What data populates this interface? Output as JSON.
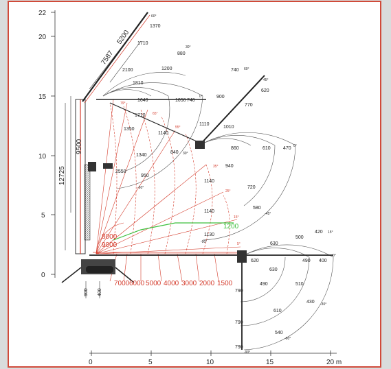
{
  "colors": {
    "frame": "#d04a3a",
    "boom": "#d43a2a",
    "line": "#333333",
    "green": "#3cbf3c",
    "background": "#d9dcdc"
  },
  "axes": {
    "x_ticks": [
      "0",
      "5",
      "10",
      "15",
      "20 m"
    ],
    "y_ticks": [
      "0",
      "5",
      "10",
      "15",
      "20",
      "22"
    ]
  },
  "dimensions": {
    "d7587": "7587",
    "d5200": "5200",
    "d9500": "9500",
    "d12725": "12725",
    "d900": "900",
    "d400": "400"
  },
  "red_loads_bottom": [
    "7000",
    "6000",
    "5000",
    "4000",
    "3000",
    "2000",
    "1500"
  ],
  "red_loads_left": [
    "8000",
    "9000"
  ],
  "green_load": "1200",
  "load_labels": {
    "top": [
      {
        "id": "l1370",
        "t": "1370"
      },
      {
        "id": "l1710a",
        "t": "1710"
      },
      {
        "id": "l880",
        "t": "880"
      },
      {
        "id": "l2100",
        "t": "2100"
      },
      {
        "id": "l1200",
        "t": "1200"
      },
      {
        "id": "l1810",
        "t": "1810"
      },
      {
        "id": "l1640",
        "t": "1640"
      },
      {
        "id": "l1050",
        "t": "1050"
      },
      {
        "id": "l740a",
        "t": "740"
      },
      {
        "id": "l1710b",
        "t": "1710"
      },
      {
        "id": "l1350",
        "t": "1350"
      },
      {
        "id": "l1140a",
        "t": "1140"
      },
      {
        "id": "l840",
        "t": "840"
      },
      {
        "id": "l1340",
        "t": "1340"
      },
      {
        "id": "l2550",
        "t": "2550"
      },
      {
        "id": "l950",
        "t": "950"
      }
    ],
    "mid": [
      {
        "id": "l740b",
        "t": "740"
      },
      {
        "id": "l620a",
        "t": "620"
      },
      {
        "id": "l900a",
        "t": "900"
      },
      {
        "id": "l770",
        "t": "770"
      },
      {
        "id": "l1110",
        "t": "1110"
      },
      {
        "id": "l1010",
        "t": "1010"
      },
      {
        "id": "l860",
        "t": "860"
      },
      {
        "id": "l610a",
        "t": "610"
      },
      {
        "id": "l470",
        "t": "470"
      },
      {
        "id": "l940",
        "t": "940"
      },
      {
        "id": "l1140b",
        "t": "1140"
      },
      {
        "id": "l720",
        "t": "720"
      },
      {
        "id": "l580",
        "t": "580"
      },
      {
        "id": "l1140c",
        "t": "1140"
      },
      {
        "id": "l1130",
        "t": "1130"
      }
    ],
    "right": [
      {
        "id": "l420",
        "t": "420"
      },
      {
        "id": "l500",
        "t": "500"
      },
      {
        "id": "l630a",
        "t": "630"
      },
      {
        "id": "l620b",
        "t": "620"
      },
      {
        "id": "l490a",
        "t": "490"
      },
      {
        "id": "l400",
        "t": "400"
      },
      {
        "id": "l630b",
        "t": "630"
      },
      {
        "id": "l490b",
        "t": "490"
      },
      {
        "id": "l510",
        "t": "510"
      },
      {
        "id": "l790a",
        "t": "790"
      },
      {
        "id": "l430",
        "t": "430"
      },
      {
        "id": "l610b",
        "t": "610"
      },
      {
        "id": "l790b",
        "t": "790"
      },
      {
        "id": "l540",
        "t": "540"
      },
      {
        "id": "l790c",
        "t": "790"
      }
    ]
  },
  "angles": {
    "a60": "60°",
    "a30": "30°",
    "a0a": "0°",
    "a79": "79°",
    "a65": "65°",
    "a55": "55°",
    "a30b": "30°",
    "am60": "-60°",
    "a60b": "60°",
    "a45": "45°",
    "a0b": "0°",
    "a35": "35°",
    "a25": "25°",
    "a15a": "15°",
    "am45": "-45°",
    "am90a": "-90°",
    "a15b": "15°",
    "a0c": "0°",
    "am30": "-30°",
    "am60b": "-60°",
    "am90b": "-90°",
    "a5": "5°"
  }
}
